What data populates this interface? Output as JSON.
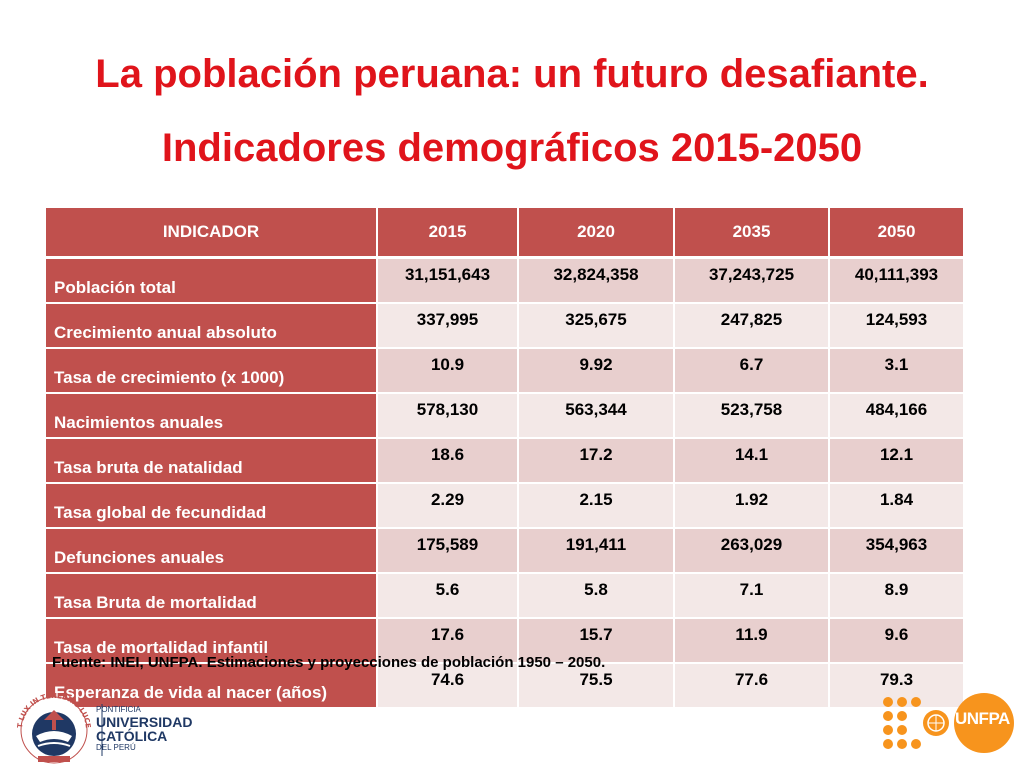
{
  "title_line1": "La población peruana: un futuro desafiante.",
  "title_line2": "Indicadores demográficos 2015-2050",
  "table": {
    "headers": [
      "INDICADOR",
      "2015",
      "2020",
      "2035",
      "2050"
    ],
    "rows": [
      {
        "label": "Población total",
        "values": [
          "31,151,643",
          "32,824,358",
          "37,243,725",
          "40,111,393"
        ]
      },
      {
        "label": "Crecimiento anual absoluto",
        "values": [
          "337,995",
          "325,675",
          "247,825",
          "124,593"
        ]
      },
      {
        "label": "Tasa de crecimiento (x 1000)",
        "values": [
          "10.9",
          "9.92",
          "6.7",
          "3.1"
        ]
      },
      {
        "label": "Nacimientos anuales",
        "values": [
          "578,130",
          "563,344",
          "523,758",
          "484,166"
        ]
      },
      {
        "label": "Tasa bruta de natalidad",
        "values": [
          "18.6",
          "17.2",
          "14.1",
          "12.1"
        ]
      },
      {
        "label": "Tasa global de fecundidad",
        "values": [
          "2.29",
          "2.15",
          "1.92",
          "1.84"
        ]
      },
      {
        "label": "Defunciones anuales",
        "values": [
          "175,589",
          "191,411",
          "263,029",
          "354,963"
        ]
      },
      {
        "label": "Tasa Bruta de mortalidad",
        "values": [
          "5.6",
          "5.8",
          "7.1",
          "8.9"
        ]
      },
      {
        "label": "Tasa de mortalidad infantil",
        "values": [
          "17.6",
          "15.7",
          "11.9",
          "9.6"
        ]
      },
      {
        "label": "Esperanza de vida al nacer (años)",
        "values": [
          "74.6",
          "75.5",
          "77.6",
          "79.3"
        ]
      }
    ]
  },
  "source": "Fuente: INEI, UNFPA. Estimaciones y proyecciones de población 1950 – 2050.",
  "logos": {
    "pucp": {
      "motto": "ET LUX IN TENEBRIS LUCET",
      "line1": "PONTIFICIA",
      "line2": "UNIVERSIDAD",
      "line3": "CATÓLICA",
      "line4": "DEL PERÚ"
    },
    "unfpa": {
      "text": "UNFPA"
    }
  },
  "colors": {
    "title": "#e0141b",
    "header_bg": "#c0504d",
    "row_odd": "#e8cfce",
    "row_even": "#f3e8e7",
    "unfpa_orange": "#f7941d",
    "pucp_navy": "#1f3864"
  }
}
